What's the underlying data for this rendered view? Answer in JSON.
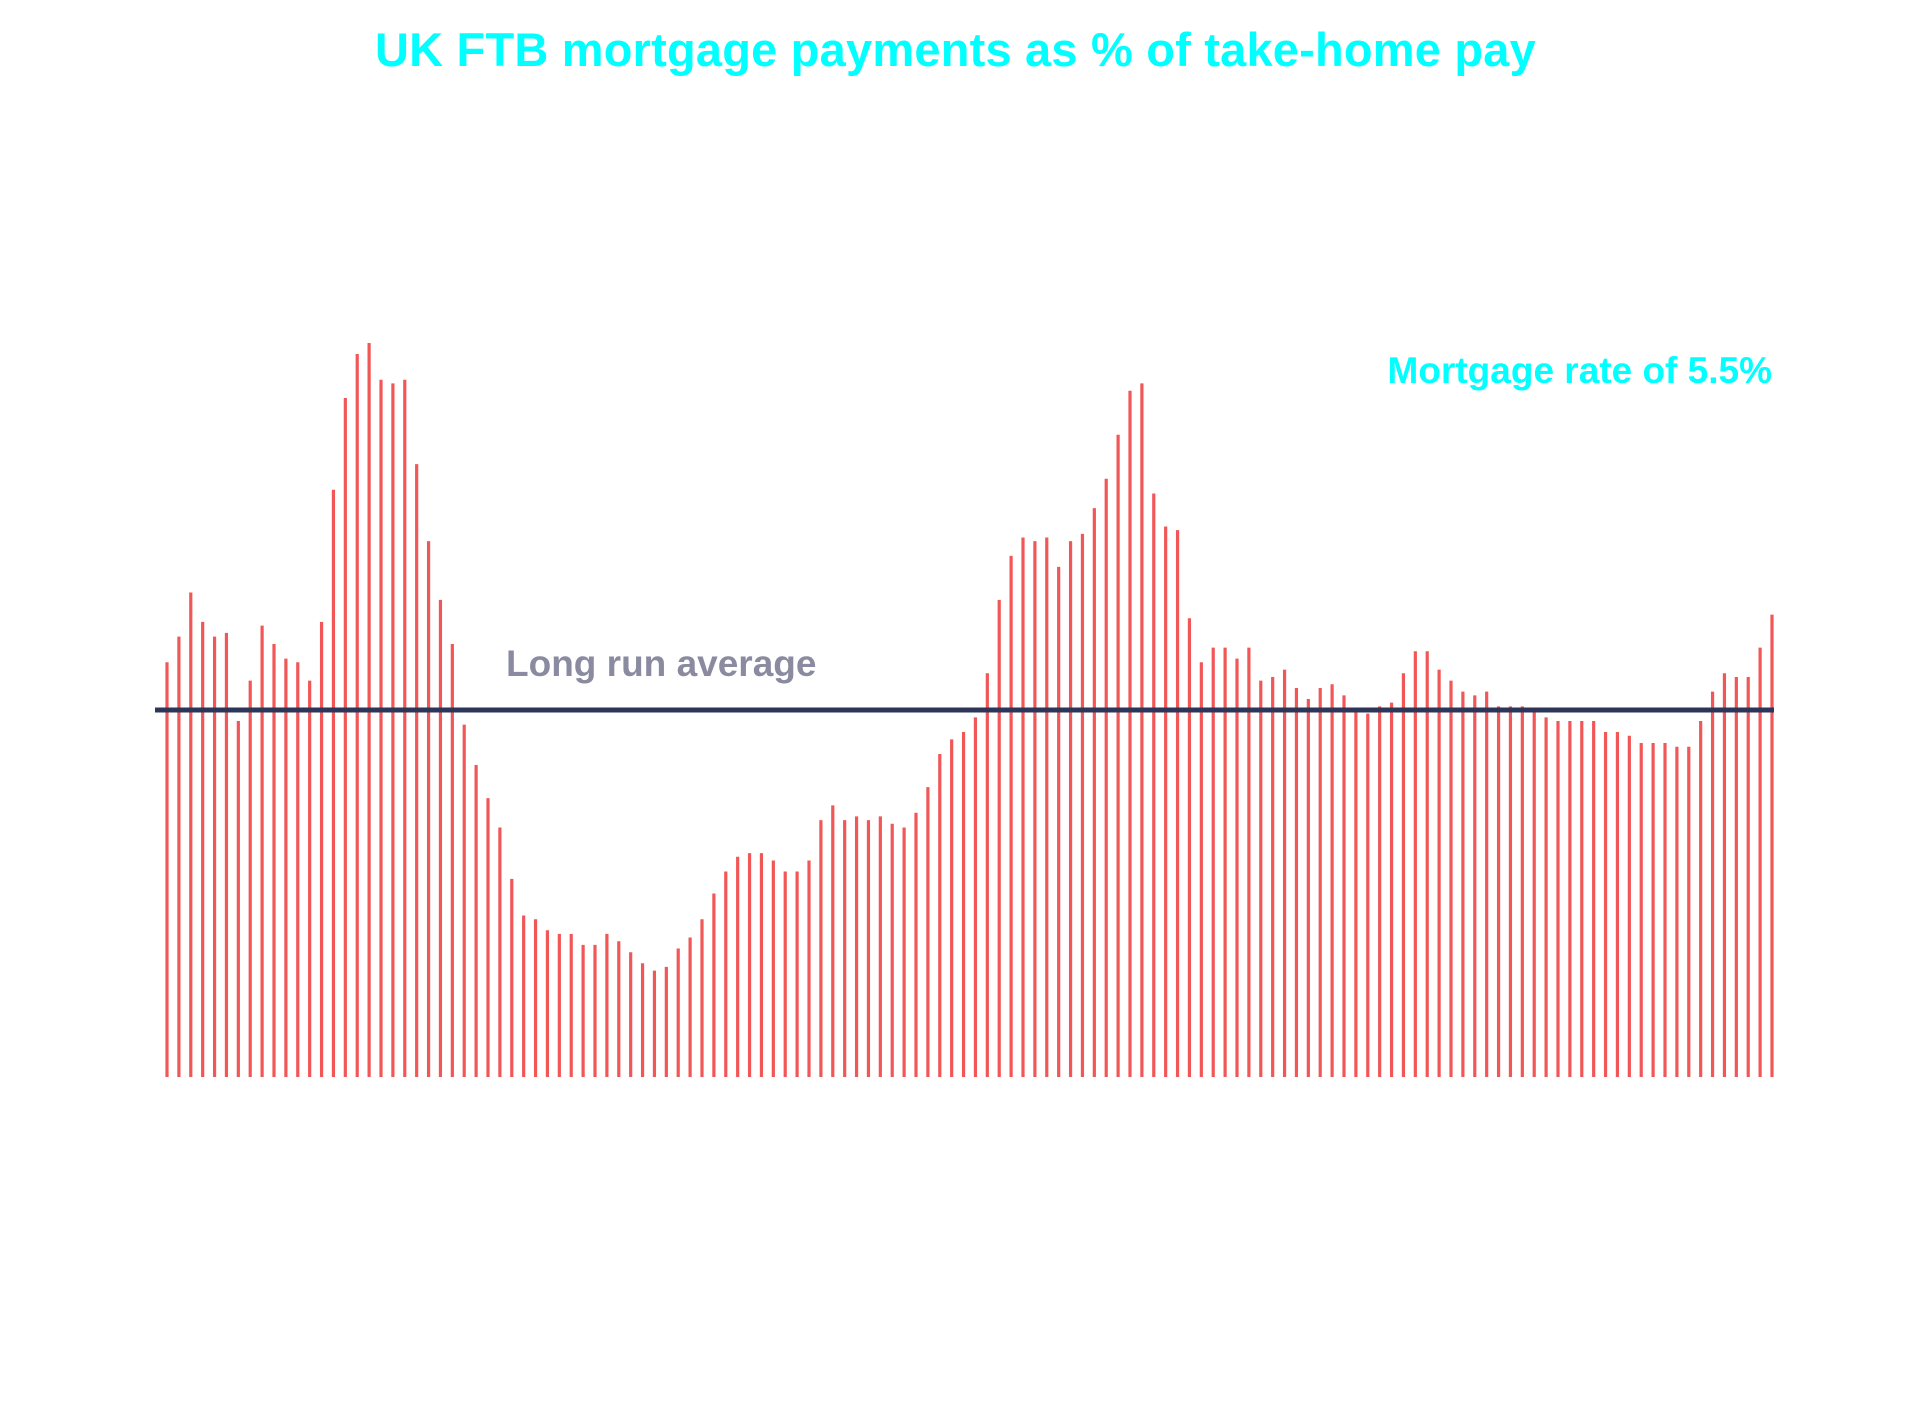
{
  "chart_data": {
    "type": "bar",
    "title": "UK FTB mortgage payments as % of take-home pay",
    "annotation": "Mortgage rate of 5.5%",
    "reference_line": {
      "label": "Long run average",
      "value": 100
    },
    "xlabel": "",
    "ylabel": "",
    "ylim": [
      0,
      200
    ],
    "grid": false,
    "legend": "none",
    "series": [
      {
        "values": [
          113,
          120,
          132,
          124,
          120,
          121,
          97,
          108,
          123,
          118,
          114,
          113,
          108,
          124,
          160,
          185,
          197,
          200,
          190,
          189,
          190,
          167,
          146,
          130,
          118,
          96,
          85,
          76,
          68,
          54,
          44,
          43,
          40,
          39,
          39,
          36,
          36,
          39,
          37,
          34,
          31,
          29,
          30,
          35,
          38,
          43,
          50,
          56,
          60,
          61,
          61,
          59,
          56,
          56,
          59,
          70,
          74,
          70,
          71,
          70,
          71,
          69,
          68,
          72,
          79,
          88,
          92,
          94,
          98,
          110,
          130,
          142,
          147,
          146,
          147,
          139,
          146,
          148,
          155,
          163,
          175,
          187,
          189,
          159,
          150,
          149,
          125,
          113,
          117,
          117,
          114,
          117,
          108,
          109,
          111,
          106,
          103,
          106,
          107,
          104,
          100,
          99,
          101,
          102,
          110,
          116,
          116,
          111,
          108,
          105,
          104,
          105,
          101,
          101,
          101,
          100,
          98,
          97,
          97,
          97,
          97,
          94,
          94,
          93,
          91,
          91,
          91,
          90,
          90,
          97,
          105,
          110,
          109,
          109,
          117,
          126
        ]
      }
    ],
    "colors": {
      "bars": "#f25757",
      "reference_line": "#2e3658",
      "reference_label": "#8a8aa0",
      "title": "#00ffff",
      "annotation": "#00ffff"
    }
  }
}
